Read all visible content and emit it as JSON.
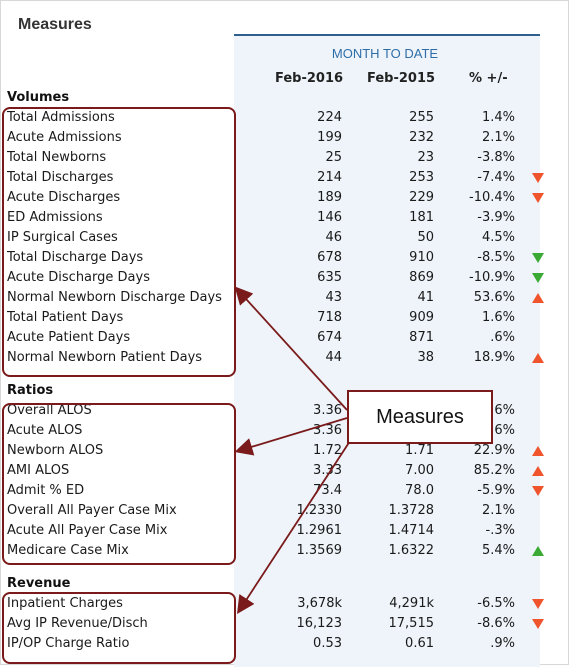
{
  "title": "Measures",
  "period_title": "MONTH TO DATE",
  "columns": [
    "Feb-2016",
    "Feb-2015",
    "% +/-"
  ],
  "sections": [
    {
      "name": "Volumes",
      "rows": [
        {
          "label": "Total Admissions",
          "v1": "224",
          "v2": "255",
          "pct": "1.4%",
          "indicator": ""
        },
        {
          "label": "Acute Admissions",
          "v1": "199",
          "v2": "232",
          "pct": "2.1%",
          "indicator": ""
        },
        {
          "label": "Total Newborns",
          "v1": "25",
          "v2": "23",
          "pct": "-3.8%",
          "indicator": ""
        },
        {
          "label": "Total Discharges",
          "v1": "214",
          "v2": "253",
          "pct": "-7.4%",
          "indicator": "down-red"
        },
        {
          "label": "Acute Discharges",
          "v1": "189",
          "v2": "229",
          "pct": "-10.4%",
          "indicator": "down-red"
        },
        {
          "label": "ED Admissions",
          "v1": "146",
          "v2": "181",
          "pct": "-3.9%",
          "indicator": ""
        },
        {
          "label": "IP Surgical Cases",
          "v1": "46",
          "v2": "50",
          "pct": "4.5%",
          "indicator": ""
        },
        {
          "label": "Total Discharge Days",
          "v1": "678",
          "v2": "910",
          "pct": "-8.5%",
          "indicator": "down-green"
        },
        {
          "label": "Acute Discharge Days",
          "v1": "635",
          "v2": "869",
          "pct": "-10.9%",
          "indicator": "down-green"
        },
        {
          "label": "Normal Newborn Discharge Days",
          "v1": "43",
          "v2": "41",
          "pct": "53.6%",
          "indicator": "up-red"
        },
        {
          "label": "Total Patient Days",
          "v1": "718",
          "v2": "909",
          "pct": "1.6%",
          "indicator": ""
        },
        {
          "label": "Acute Patient Days",
          "v1": "674",
          "v2": "871",
          "pct": ".6%",
          "indicator": ""
        },
        {
          "label": "Normal Newborn Patient Days",
          "v1": "44",
          "v2": "38",
          "pct": "18.9%",
          "indicator": "up-red"
        }
      ]
    },
    {
      "name": "Ratios",
      "rows": [
        {
          "label": "Overall ALOS",
          "v1": "3.36",
          "v2": "",
          "pct": "6%",
          "indicator": ""
        },
        {
          "label": "Acute ALOS",
          "v1": "3.36",
          "v2": "",
          "pct": "6%",
          "indicator": ""
        },
        {
          "label": "Newborn ALOS",
          "v1": "1.72",
          "v2": "1.71",
          "pct": "22.9%",
          "indicator": "up-red"
        },
        {
          "label": "AMI ALOS",
          "v1": "3.33",
          "v2": "7.00",
          "pct": "85.2%",
          "indicator": "up-red"
        },
        {
          "label": "Admit % ED",
          "v1": "73.4",
          "v2": "78.0",
          "pct": "-5.9%",
          "indicator": "down-red"
        },
        {
          "label": "Overall All Payer Case Mix",
          "v1": "1.2330",
          "v2": "1.3728",
          "pct": "2.1%",
          "indicator": ""
        },
        {
          "label": "Acute All Payer Case Mix",
          "v1": "1.2961",
          "v2": "1.4714",
          "pct": "-.3%",
          "indicator": ""
        },
        {
          "label": "Medicare Case Mix",
          "v1": "1.3569",
          "v2": "1.6322",
          "pct": "5.4%",
          "indicator": "up-green"
        }
      ]
    },
    {
      "name": "Revenue",
      "rows": [
        {
          "label": "Inpatient Charges",
          "v1": "3,678k",
          "v2": "4,291k",
          "pct": "-6.5%",
          "indicator": "down-red"
        },
        {
          "label": "Avg IP Revenue/Disch",
          "v1": "16,123",
          "v2": "17,515",
          "pct": "-8.6%",
          "indicator": "down-red"
        },
        {
          "label": "IP/OP Charge Ratio",
          "v1": "0.53",
          "v2": "0.61",
          "pct": ".9%",
          "indicator": ""
        }
      ]
    }
  ],
  "callout": {
    "label": "Measures"
  },
  "colors": {
    "up_red": "#f0542d",
    "down_red": "#f0542d",
    "up_green": "#3aaa35",
    "down_green": "#3aaa35",
    "annotation": "#7a1a1a",
    "header_blue": "#2e6ea8"
  }
}
